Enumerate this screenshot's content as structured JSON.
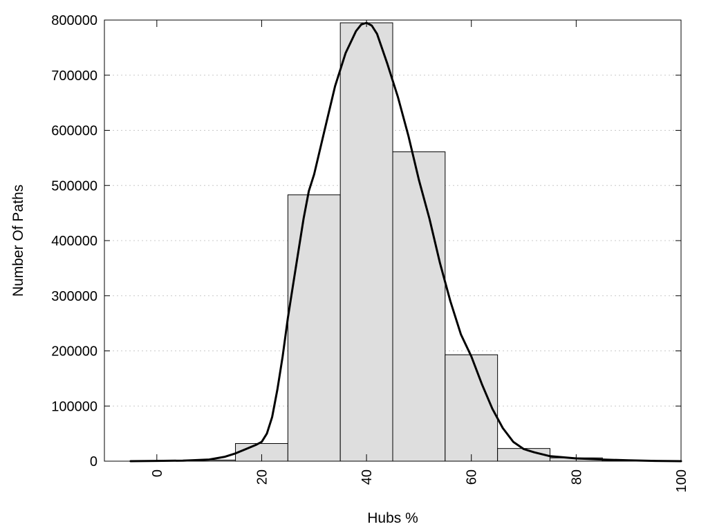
{
  "chart_data": {
    "type": "bar",
    "xlabel": "Hubs %",
    "ylabel": "Number Of Paths",
    "xlim": [
      -10,
      100
    ],
    "ylim": [
      0,
      800000
    ],
    "grid": "horizontal-dotted",
    "x_ticks": [
      0,
      20,
      40,
      60,
      80,
      100
    ],
    "y_ticks": [
      0,
      100000,
      200000,
      300000,
      400000,
      500000,
      600000,
      700000,
      800000
    ],
    "bars": [
      {
        "x_start": -5,
        "x_end": 5,
        "value": 500
      },
      {
        "x_start": 5,
        "x_end": 15,
        "value": 2000
      },
      {
        "x_start": 15,
        "x_end": 25,
        "value": 32000
      },
      {
        "x_start": 25,
        "x_end": 35,
        "value": 483000
      },
      {
        "x_start": 35,
        "x_end": 45,
        "value": 795000
      },
      {
        "x_start": 45,
        "x_end": 55,
        "value": 561000
      },
      {
        "x_start": 55,
        "x_end": 65,
        "value": 193000
      },
      {
        "x_start": 65,
        "x_end": 75,
        "value": 23000
      },
      {
        "x_start": 75,
        "x_end": 85,
        "value": 6000
      },
      {
        "x_start": 85,
        "x_end": 95,
        "value": 1500
      },
      {
        "x_start": 95,
        "x_end": 105,
        "value": 500
      }
    ],
    "curve": {
      "x": [
        -5,
        0,
        5,
        10,
        13,
        15,
        17,
        19,
        20,
        21,
        22,
        23,
        24,
        25,
        26,
        27,
        28,
        29,
        30,
        32,
        34,
        36,
        38,
        39,
        40,
        41,
        42,
        44,
        46,
        48,
        50,
        52,
        54,
        56,
        58,
        60,
        62,
        64,
        66,
        68,
        70,
        72,
        75,
        80,
        85,
        90,
        95,
        100
      ],
      "y": [
        0,
        500,
        1000,
        3000,
        8000,
        14000,
        22000,
        30000,
        35000,
        50000,
        80000,
        130000,
        190000,
        260000,
        320000,
        380000,
        440000,
        490000,
        520000,
        600000,
        680000,
        740000,
        780000,
        792000,
        795000,
        790000,
        775000,
        720000,
        660000,
        590000,
        510000,
        440000,
        360000,
        290000,
        230000,
        190000,
        140000,
        95000,
        60000,
        35000,
        22000,
        16000,
        9000,
        5000,
        3000,
        1500,
        500,
        0
      ]
    }
  }
}
